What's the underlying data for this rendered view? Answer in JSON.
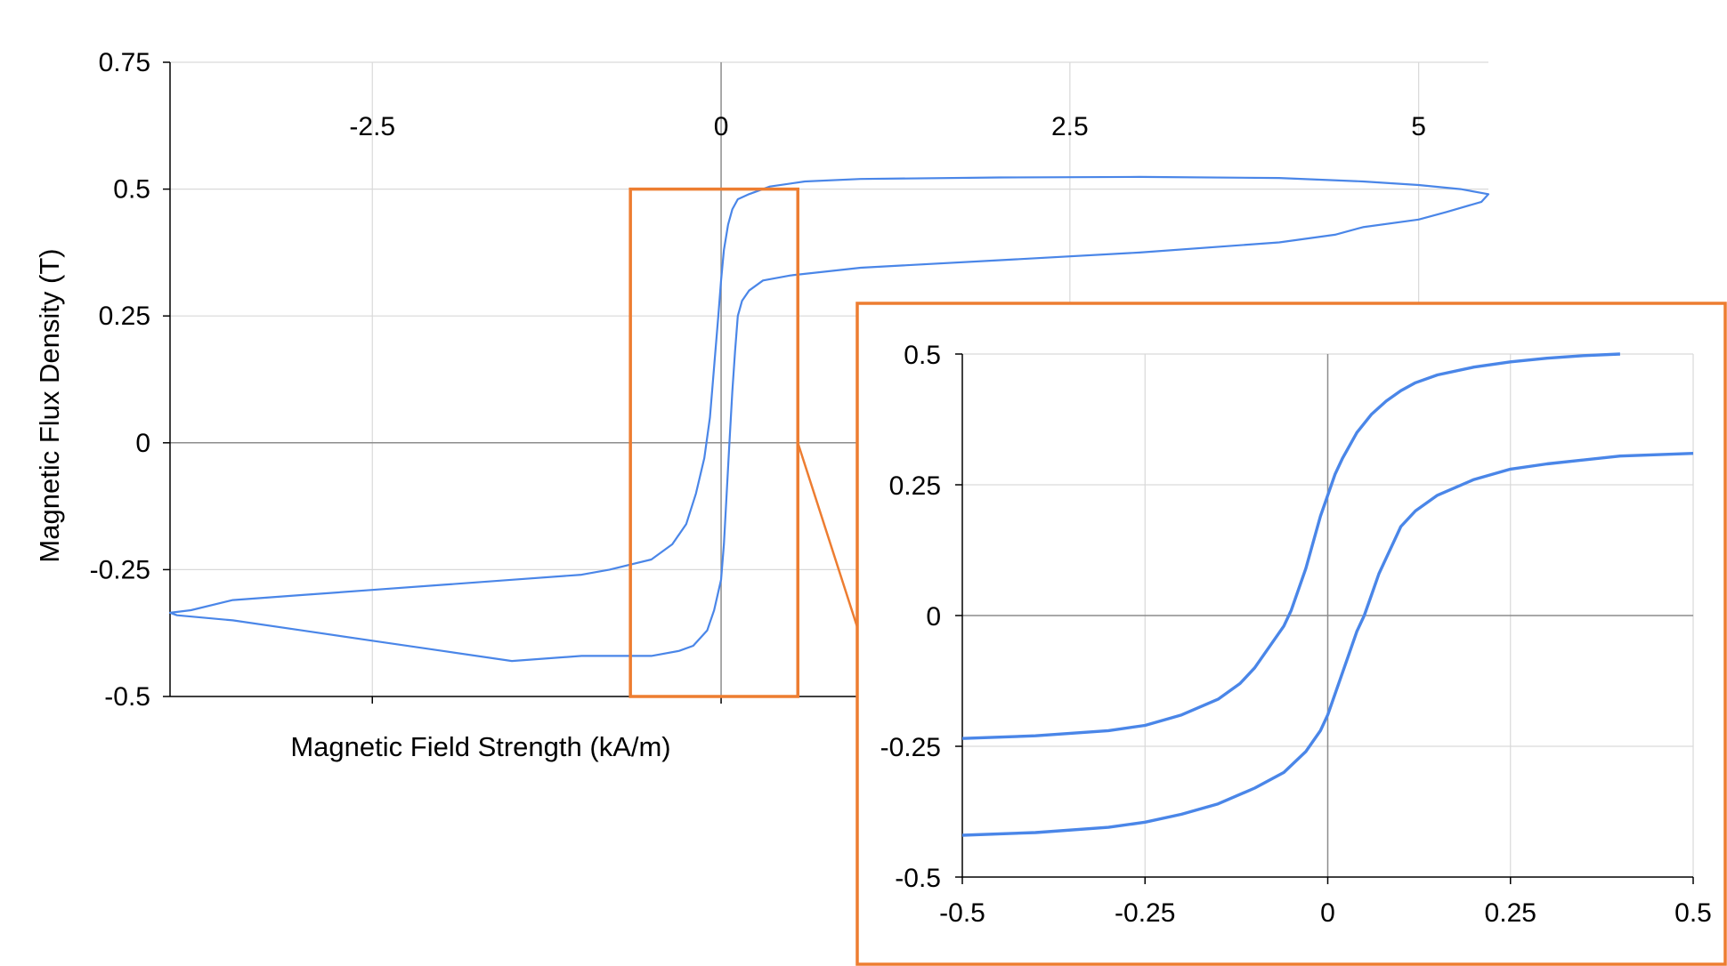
{
  "colors": {
    "curve": "#4A86E8",
    "highlight": "#ED7D31",
    "grid": "#d9d9d9",
    "axis": "#000000",
    "zeroline": "#8c8c8c"
  },
  "chart_data": [
    {
      "type": "line",
      "title": "",
      "xlabel": "Magnetic Field Strength (kA/m)",
      "ylabel": "Magnetic Flux Density (T)",
      "xlim": [
        -3.95,
        5.5
      ],
      "ylim": [
        -0.5,
        0.75
      ],
      "x_ticks": [
        -2.5,
        0,
        2.5,
        5
      ],
      "x_tick_labels": [
        "-2.5",
        "0",
        "2.5",
        "5"
      ],
      "y_ticks": [
        -0.5,
        -0.25,
        0,
        0.25,
        0.5,
        0.75
      ],
      "y_tick_labels": [
        "-0.5",
        "-0.25",
        "0",
        "0.25",
        "0.5",
        "0.75"
      ],
      "x_tick_label_position": "top",
      "grid": true,
      "zoom_box": {
        "x": [
          -0.65,
          0.55
        ],
        "y": [
          -0.5,
          0.5
        ]
      },
      "series": [
        {
          "x": [
            -0.65,
            -0.5,
            -0.35,
            -0.25,
            -0.18,
            -0.12,
            -0.08,
            -0.05,
            -0.02,
            0.0,
            0.02,
            0.05,
            0.08,
            0.12,
            0.2,
            0.35,
            0.6,
            1.0,
            2.0,
            3.0,
            4.0,
            4.6,
            5.0,
            5.3,
            5.5,
            5.45,
            5.2,
            5.0,
            4.6,
            4.4,
            4.0,
            3.0,
            2.0,
            1.0,
            0.5,
            0.3,
            0.2,
            0.15,
            0.12,
            0.1,
            0.08,
            0.06,
            0.04,
            0.02,
            0.0,
            -0.05,
            -0.1,
            -0.2,
            -0.3,
            -0.5,
            -1.0,
            -1.5,
            -2.0,
            -2.5,
            -3.0,
            -3.5,
            -3.9,
            -3.95,
            -3.8,
            -3.5,
            -3.0,
            -2.5,
            -2.0,
            -1.5,
            -1.0,
            -0.8,
            -0.65
          ],
          "y": [
            -0.24,
            -0.23,
            -0.2,
            -0.16,
            -0.1,
            -0.03,
            0.05,
            0.15,
            0.25,
            0.32,
            0.38,
            0.43,
            0.46,
            0.48,
            0.49,
            0.505,
            0.515,
            0.52,
            0.523,
            0.524,
            0.522,
            0.515,
            0.508,
            0.5,
            0.49,
            0.475,
            0.455,
            0.44,
            0.425,
            0.41,
            0.395,
            0.375,
            0.36,
            0.345,
            0.33,
            0.32,
            0.3,
            0.28,
            0.25,
            0.18,
            0.1,
            0.0,
            -0.1,
            -0.2,
            -0.27,
            -0.33,
            -0.37,
            -0.4,
            -0.41,
            -0.42,
            -0.42,
            -0.43,
            -0.41,
            -0.39,
            -0.37,
            -0.35,
            -0.34,
            -0.335,
            -0.33,
            -0.31,
            -0.3,
            -0.29,
            -0.28,
            -0.27,
            -0.26,
            -0.25,
            -0.24
          ]
        }
      ]
    },
    {
      "type": "line",
      "title": "",
      "xlabel": "",
      "ylabel": "",
      "xlim": [
        -0.5,
        0.5
      ],
      "ylim": [
        -0.5,
        0.5
      ],
      "x_ticks": [
        -0.5,
        -0.25,
        0,
        0.25,
        0.5
      ],
      "x_tick_labels": [
        "-0.5",
        "-0.25",
        "0",
        "0.25",
        "0.5"
      ],
      "y_ticks": [
        -0.5,
        -0.25,
        0,
        0.25,
        0.5
      ],
      "y_tick_labels": [
        "-0.5",
        "-0.25",
        "0",
        "0.25",
        "0.5"
      ],
      "grid": true,
      "series": [
        {
          "x": [
            -0.5,
            -0.4,
            -0.3,
            -0.25,
            -0.2,
            -0.15,
            -0.12,
            -0.1,
            -0.08,
            -0.06,
            -0.05,
            -0.04,
            -0.03,
            -0.02,
            -0.01,
            0.0,
            0.01,
            0.02,
            0.04,
            0.06,
            0.08,
            0.1,
            0.12,
            0.15,
            0.2,
            0.25,
            0.3,
            0.35,
            0.4
          ],
          "y": [
            -0.235,
            -0.23,
            -0.22,
            -0.21,
            -0.19,
            -0.16,
            -0.13,
            -0.1,
            -0.06,
            -0.02,
            0.01,
            0.05,
            0.09,
            0.14,
            0.19,
            0.23,
            0.27,
            0.3,
            0.35,
            0.385,
            0.41,
            0.43,
            0.445,
            0.46,
            0.475,
            0.485,
            0.492,
            0.497,
            0.5
          ]
        },
        {
          "x": [
            -0.5,
            -0.4,
            -0.3,
            -0.25,
            -0.2,
            -0.15,
            -0.1,
            -0.06,
            -0.03,
            -0.01,
            0.0,
            0.01,
            0.02,
            0.03,
            0.04,
            0.05,
            0.06,
            0.07,
            0.08,
            0.09,
            0.1,
            0.12,
            0.15,
            0.2,
            0.25,
            0.3,
            0.4,
            0.5
          ],
          "y": [
            -0.42,
            -0.415,
            -0.405,
            -0.395,
            -0.38,
            -0.36,
            -0.33,
            -0.3,
            -0.26,
            -0.22,
            -0.19,
            -0.15,
            -0.11,
            -0.07,
            -0.03,
            0.0,
            0.04,
            0.08,
            0.11,
            0.14,
            0.17,
            0.2,
            0.23,
            0.26,
            0.28,
            0.29,
            0.305,
            0.31
          ]
        }
      ]
    }
  ]
}
